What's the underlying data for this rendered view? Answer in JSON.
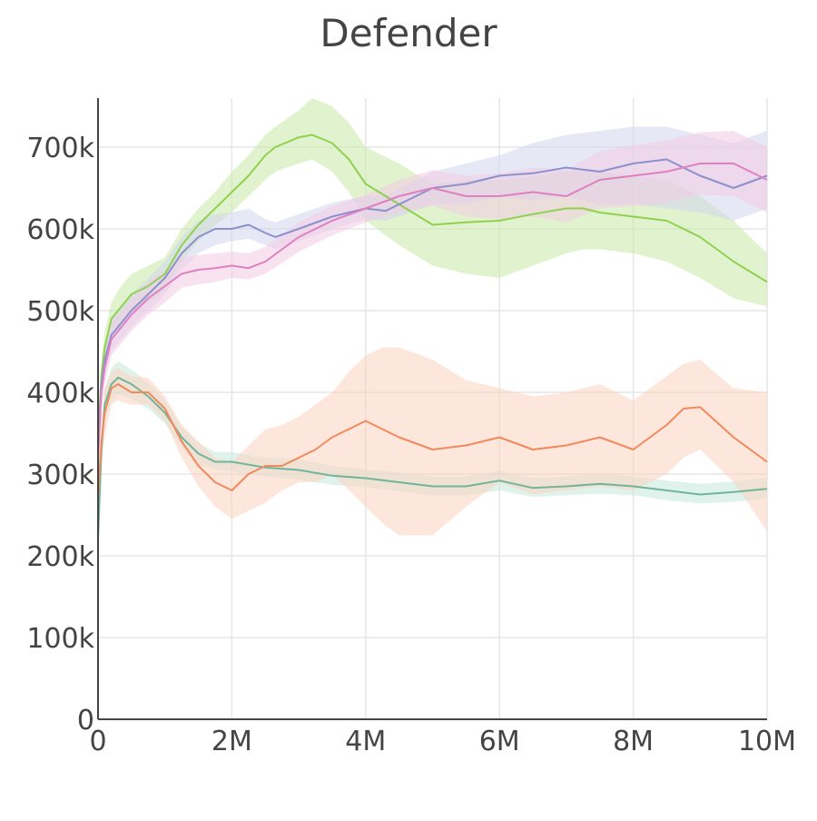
{
  "chart_data": {
    "type": "line",
    "title": "Defender",
    "xlabel": "",
    "ylabel": "",
    "xlim": [
      0,
      10000000
    ],
    "ylim": [
      0,
      760000
    ],
    "x_ticks": [
      {
        "value": 0,
        "label": "0"
      },
      {
        "value": 2000000,
        "label": "2M"
      },
      {
        "value": 4000000,
        "label": "4M"
      },
      {
        "value": 6000000,
        "label": "6M"
      },
      {
        "value": 8000000,
        "label": "8M"
      },
      {
        "value": 10000000,
        "label": "10M"
      }
    ],
    "y_ticks": [
      {
        "value": 0,
        "label": "0"
      },
      {
        "value": 100000,
        "label": "100k"
      },
      {
        "value": 200000,
        "label": "200k"
      },
      {
        "value": 300000,
        "label": "300k"
      },
      {
        "value": 400000,
        "label": "400k"
      },
      {
        "value": 500000,
        "label": "500k"
      },
      {
        "value": 600000,
        "label": "600k"
      },
      {
        "value": 700000,
        "label": "700k"
      }
    ],
    "grid": true,
    "legend": "none",
    "series": [
      {
        "name": "green",
        "color": "#8fd14f",
        "band_color": "#c9e9a6",
        "x": [
          0,
          0.05,
          0.1,
          0.2,
          0.3,
          0.5,
          0.75,
          1.0,
          1.25,
          1.5,
          1.75,
          2.0,
          2.25,
          2.5,
          2.65,
          3.0,
          3.2,
          3.5,
          3.75,
          4.0,
          4.5,
          5.0,
          5.5,
          6.0,
          6.5,
          7.0,
          7.25,
          7.5,
          8.0,
          8.5,
          9.0,
          9.5,
          10.0
        ],
        "y": [
          340,
          420,
          455,
          490,
          500,
          520,
          530,
          545,
          580,
          605,
          625,
          645,
          665,
          690,
          700,
          712,
          715,
          705,
          685,
          655,
          630,
          605,
          608,
          610,
          618,
          625,
          625,
          620,
          615,
          610,
          590,
          560,
          535
        ],
        "lower": [
          320,
          400,
          435,
          470,
          480,
          500,
          510,
          525,
          560,
          585,
          605,
          620,
          640,
          660,
          670,
          680,
          685,
          670,
          645,
          610,
          580,
          555,
          545,
          540,
          555,
          570,
          575,
          575,
          570,
          560,
          540,
          515,
          505
        ],
        "upper": [
          360,
          440,
          475,
          510,
          525,
          545,
          555,
          565,
          600,
          625,
          645,
          670,
          690,
          715,
          725,
          745,
          760,
          750,
          730,
          700,
          680,
          655,
          660,
          660,
          665,
          670,
          672,
          670,
          665,
          660,
          640,
          610,
          570
        ]
      },
      {
        "name": "purple",
        "color": "#8c91cc",
        "band_color": "#d2d5ee",
        "x": [
          0,
          0.05,
          0.1,
          0.2,
          0.3,
          0.5,
          0.75,
          1.0,
          1.25,
          1.5,
          1.75,
          2.0,
          2.25,
          2.5,
          2.65,
          3.0,
          3.5,
          4.0,
          4.3,
          4.5,
          5.0,
          5.5,
          6.0,
          6.5,
          7.0,
          7.5,
          8.0,
          8.5,
          9.0,
          9.5,
          10.0
        ],
        "y": [
          330,
          410,
          440,
          470,
          480,
          500,
          520,
          540,
          570,
          590,
          600,
          600,
          605,
          595,
          590,
          600,
          615,
          625,
          622,
          630,
          650,
          655,
          665,
          668,
          675,
          670,
          680,
          685,
          665,
          650,
          665
        ],
        "lower": [
          310,
          390,
          420,
          450,
          460,
          480,
          500,
          520,
          550,
          570,
          580,
          585,
          588,
          580,
          575,
          585,
          600,
          612,
          610,
          615,
          630,
          630,
          640,
          635,
          640,
          630,
          630,
          625,
          620,
          610,
          625
        ],
        "upper": [
          350,
          430,
          460,
          490,
          500,
          520,
          540,
          560,
          590,
          610,
          618,
          620,
          625,
          612,
          608,
          618,
          632,
          640,
          640,
          650,
          670,
          680,
          690,
          705,
          715,
          720,
          725,
          725,
          715,
          705,
          720
        ]
      },
      {
        "name": "pink",
        "color": "#df80c0",
        "band_color": "#f2cbe4",
        "x": [
          0,
          0.05,
          0.1,
          0.2,
          0.3,
          0.5,
          0.75,
          1.0,
          1.25,
          1.5,
          1.75,
          2.0,
          2.25,
          2.5,
          2.75,
          3.0,
          3.5,
          4.0,
          4.5,
          5.0,
          5.5,
          6.0,
          6.5,
          7.0,
          7.5,
          8.0,
          8.5,
          9.0,
          9.5,
          10.0
        ],
        "y": [
          320,
          400,
          430,
          465,
          475,
          495,
          515,
          530,
          545,
          550,
          552,
          555,
          552,
          560,
          575,
          590,
          610,
          625,
          640,
          650,
          640,
          640,
          645,
          640,
          660,
          665,
          670,
          680,
          680,
          660
        ],
        "lower": [
          300,
          380,
          410,
          445,
          455,
          475,
          495,
          510,
          528,
          532,
          535,
          540,
          538,
          545,
          558,
          572,
          592,
          608,
          620,
          628,
          615,
          612,
          615,
          608,
          625,
          628,
          632,
          642,
          640,
          620
        ],
        "upper": [
          340,
          420,
          450,
          485,
          495,
          515,
          535,
          550,
          565,
          568,
          570,
          572,
          570,
          578,
          592,
          608,
          628,
          642,
          660,
          672,
          665,
          668,
          675,
          672,
          695,
          702,
          708,
          718,
          720,
          700
        ]
      },
      {
        "name": "orange",
        "color": "#f08a5d",
        "band_color": "#fbd3c0",
        "x": [
          0,
          0.05,
          0.1,
          0.2,
          0.3,
          0.5,
          0.75,
          1.0,
          1.25,
          1.5,
          1.75,
          2.0,
          2.25,
          2.5,
          2.75,
          3.0,
          3.25,
          3.5,
          3.75,
          4.0,
          4.25,
          4.5,
          5.0,
          5.5,
          6.0,
          6.5,
          7.0,
          7.5,
          8.0,
          8.5,
          8.75,
          9.0,
          9.5,
          10.0
        ],
        "y": [
          270,
          340,
          375,
          405,
          410,
          400,
          400,
          380,
          340,
          310,
          290,
          280,
          300,
          310,
          310,
          320,
          330,
          345,
          355,
          365,
          355,
          345,
          330,
          335,
          345,
          330,
          335,
          345,
          330,
          360,
          380,
          382,
          345,
          315
        ],
        "lower": [
          240,
          310,
          345,
          385,
          390,
          385,
          385,
          365,
          320,
          285,
          260,
          245,
          255,
          265,
          280,
          290,
          290,
          300,
          280,
          260,
          240,
          225,
          225,
          260,
          290,
          275,
          280,
          285,
          280,
          300,
          320,
          330,
          290,
          230
        ],
        "upper": [
          300,
          370,
          405,
          425,
          430,
          420,
          418,
          395,
          360,
          340,
          320,
          315,
          335,
          355,
          360,
          370,
          385,
          400,
          425,
          445,
          455,
          455,
          440,
          415,
          405,
          395,
          400,
          410,
          390,
          420,
          435,
          440,
          405,
          400
        ]
      },
      {
        "name": "teal",
        "color": "#6fb59a",
        "band_color": "#c5e8dc",
        "x": [
          0,
          0.05,
          0.1,
          0.2,
          0.3,
          0.5,
          0.75,
          1.0,
          1.25,
          1.5,
          1.75,
          2.0,
          2.5,
          3.0,
          3.5,
          4.0,
          4.5,
          5.0,
          5.5,
          6.0,
          6.5,
          7.0,
          7.5,
          8.0,
          8.5,
          9.0,
          9.5,
          10.0
        ],
        "y": [
          220,
          330,
          385,
          410,
          418,
          410,
          395,
          375,
          345,
          325,
          315,
          315,
          308,
          305,
          298,
          295,
          290,
          285,
          285,
          292,
          283,
          285,
          288,
          285,
          280,
          275,
          278,
          282
        ],
        "lower": [
          200,
          310,
          365,
          390,
          398,
          392,
          380,
          362,
          332,
          312,
          305,
          303,
          297,
          293,
          287,
          284,
          279,
          274,
          274,
          280,
          272,
          274,
          276,
          274,
          268,
          264,
          266,
          270
        ],
        "upper": [
          240,
          350,
          405,
          430,
          438,
          428,
          412,
          390,
          358,
          338,
          327,
          327,
          320,
          318,
          310,
          306,
          302,
          297,
          297,
          304,
          295,
          297,
          300,
          297,
          292,
          288,
          291,
          296
        ]
      }
    ],
    "units_note": "x values in millions of steps, y values in thousands"
  }
}
